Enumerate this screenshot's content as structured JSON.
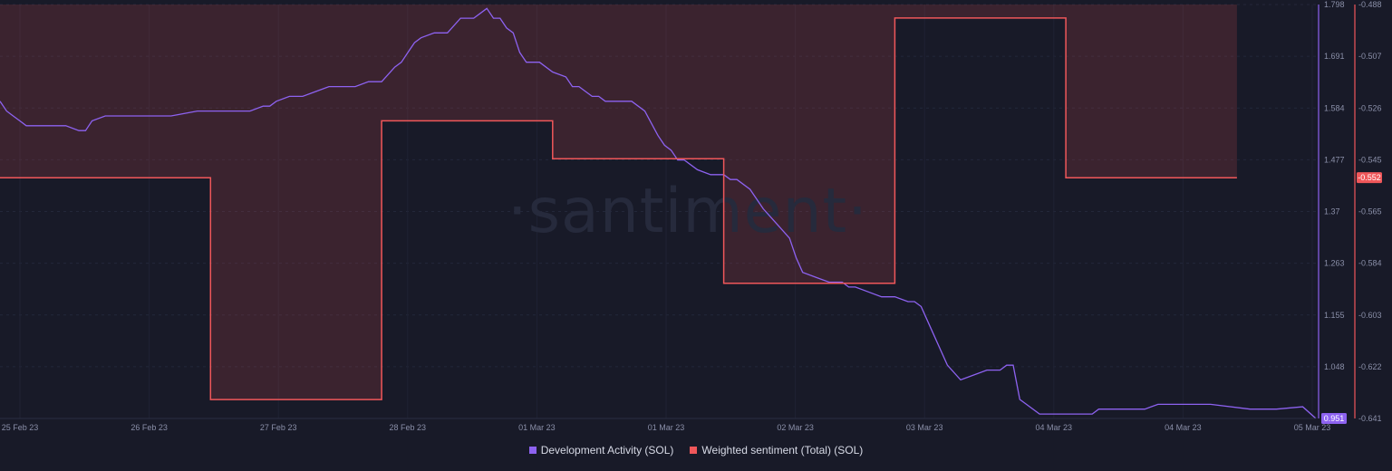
{
  "watermark": "·santiment·",
  "chart_data": {
    "type": "line",
    "x_ticks": [
      "25 Feb 23",
      "26 Feb 23",
      "27 Feb 23",
      "28 Feb 23",
      "01 Mar 23",
      "01 Mar 23",
      "02 Mar 23",
      "03 Mar 23",
      "04 Mar 23",
      "04 Mar 23",
      "05 Mar 23"
    ],
    "series": [
      {
        "name": "Development Activity (SOL)",
        "color": "#8d62f0",
        "axis": "left",
        "ylim": [
          0.951,
          1.798
        ],
        "last_value_label": "0.951",
        "x": [
          0,
          0.005,
          0.01,
          0.015,
          0.02,
          0.025,
          0.03,
          0.04,
          0.05,
          0.06,
          0.065,
          0.07,
          0.08,
          0.1,
          0.12,
          0.13,
          0.15,
          0.17,
          0.19,
          0.2,
          0.205,
          0.21,
          0.22,
          0.23,
          0.24,
          0.25,
          0.26,
          0.27,
          0.28,
          0.29,
          0.3,
          0.305,
          0.31,
          0.315,
          0.32,
          0.33,
          0.34,
          0.35,
          0.36,
          0.365,
          0.37,
          0.375,
          0.38,
          0.385,
          0.39,
          0.395,
          0.4,
          0.41,
          0.42,
          0.43,
          0.435,
          0.44,
          0.445,
          0.45,
          0.455,
          0.46,
          0.47,
          0.48,
          0.49,
          0.5,
          0.505,
          0.51,
          0.515,
          0.52,
          0.53,
          0.54,
          0.55,
          0.555,
          0.56,
          0.57,
          0.58,
          0.59,
          0.6,
          0.605,
          0.61,
          0.62,
          0.63,
          0.64,
          0.645,
          0.65,
          0.66,
          0.67,
          0.68,
          0.69,
          0.695,
          0.7,
          0.71,
          0.72,
          0.73,
          0.74,
          0.75,
          0.76,
          0.765,
          0.77,
          0.775,
          0.78,
          0.79,
          0.8,
          0.81,
          0.815,
          0.82,
          0.825,
          0.83,
          0.835,
          0.84,
          0.85,
          0.86,
          0.87,
          0.88,
          0.9,
          0.92,
          0.95,
          0.97,
          0.99,
          1.0
        ],
        "values": [
          1.6,
          1.58,
          1.57,
          1.56,
          1.55,
          1.55,
          1.55,
          1.55,
          1.55,
          1.54,
          1.54,
          1.56,
          1.57,
          1.57,
          1.57,
          1.57,
          1.58,
          1.58,
          1.58,
          1.59,
          1.59,
          1.6,
          1.61,
          1.61,
          1.62,
          1.63,
          1.63,
          1.63,
          1.64,
          1.64,
          1.67,
          1.68,
          1.7,
          1.72,
          1.73,
          1.74,
          1.74,
          1.77,
          1.77,
          1.78,
          1.79,
          1.77,
          1.77,
          1.75,
          1.74,
          1.7,
          1.68,
          1.68,
          1.66,
          1.65,
          1.63,
          1.63,
          1.62,
          1.61,
          1.61,
          1.6,
          1.6,
          1.6,
          1.58,
          1.53,
          1.51,
          1.5,
          1.48,
          1.48,
          1.46,
          1.45,
          1.45,
          1.44,
          1.44,
          1.42,
          1.38,
          1.35,
          1.32,
          1.28,
          1.25,
          1.24,
          1.23,
          1.23,
          1.22,
          1.22,
          1.21,
          1.2,
          1.2,
          1.19,
          1.19,
          1.18,
          1.12,
          1.06,
          1.03,
          1.04,
          1.05,
          1.05,
          1.06,
          1.06,
          0.99,
          0.98,
          0.96,
          0.96,
          0.96,
          0.96,
          0.96,
          0.96,
          0.96,
          0.97,
          0.97,
          0.97,
          0.97,
          0.97,
          0.98,
          0.98,
          0.98,
          0.97,
          0.97,
          0.975,
          0.951
        ]
      },
      {
        "name": "Weighted sentiment (Total) (SOL)",
        "color": "#f0575a",
        "axis": "right",
        "ylim": [
          -0.641,
          -0.488
        ],
        "last_value_label": "-0.552",
        "x": [
          0,
          0.16,
          0.16,
          0.29,
          0.29,
          0.42,
          0.42,
          0.55,
          0.55,
          0.68,
          0.68,
          0.81,
          0.81,
          0.94
        ],
        "values": [
          -0.552,
          -0.552,
          -0.634,
          -0.634,
          -0.531,
          -0.531,
          -0.545,
          -0.545,
          -0.591,
          -0.591,
          -0.493,
          -0.493,
          -0.552,
          -0.552
        ]
      }
    ],
    "left_axis_ticks": [
      "1.798",
      "1.691",
      "1.584",
      "1.477",
      "1.37",
      "1.263",
      "1.155",
      "1.048",
      "0.951"
    ],
    "right_axis_ticks": [
      "-0.488",
      "-0.507",
      "-0.526",
      "-0.545",
      "-0.565",
      "-0.584",
      "-0.603",
      "-0.622",
      "-0.641"
    ],
    "grid": true,
    "legend_placement": "bottom-center"
  },
  "legend": [
    {
      "label": "Development Activity (SOL)",
      "color": "#8d62f0"
    },
    {
      "label": "Weighted sentiment (Total) (SOL)",
      "color": "#f0575a"
    }
  ]
}
